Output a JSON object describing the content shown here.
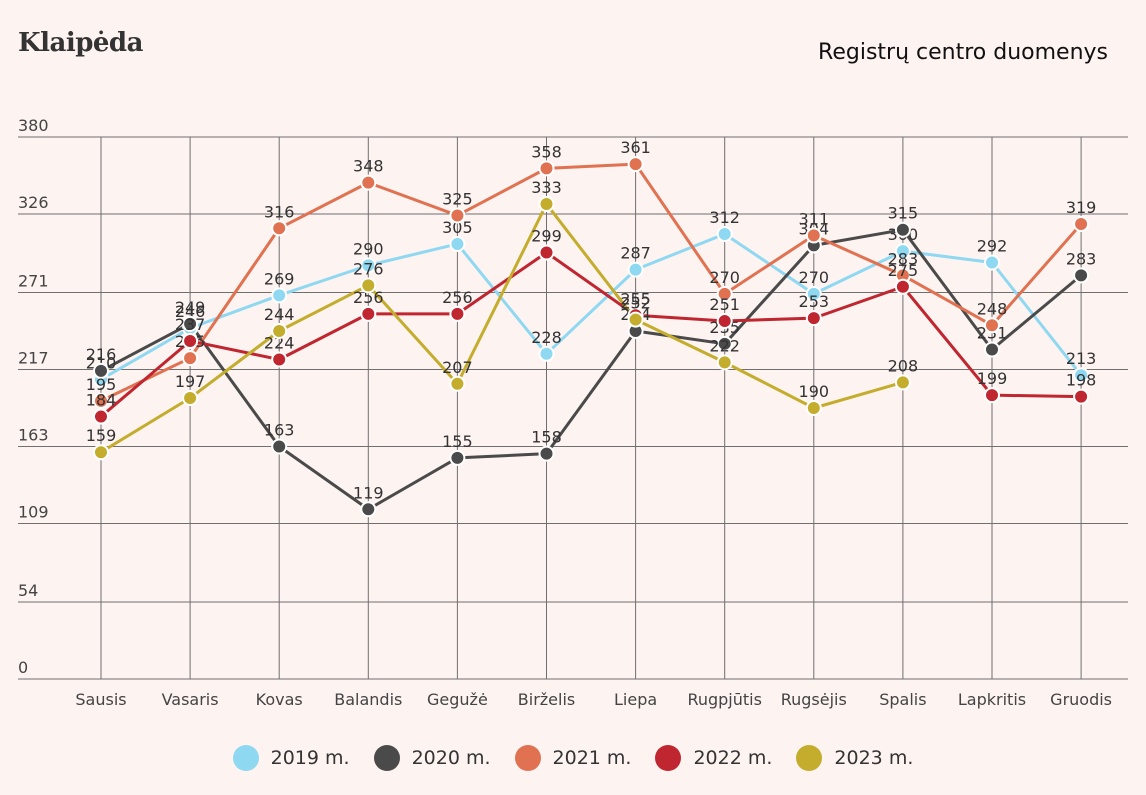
{
  "header": {
    "title": "Klaipėda",
    "source": "Registrų centro duomenys"
  },
  "chart_data": {
    "type": "line",
    "title": "Klaipėda",
    "categories": [
      "Sausis",
      "Vasaris",
      "Kovas",
      "Balandis",
      "Gegužė",
      "Birželis",
      "Liepa",
      "Rugpjūtis",
      "Rugsėjis",
      "Spalis",
      "Lapkritis",
      "Gruodis"
    ],
    "y_ticks": [
      "0",
      "54",
      "109",
      "163",
      "217",
      "271",
      "326",
      "380"
    ],
    "ylim": [
      0,
      380
    ],
    "grid": true,
    "legend_position": "bottom",
    "xlabel": "",
    "ylabel": "",
    "series": [
      {
        "name": "2019 m.",
        "color": "#8fd8f2",
        "values": [
          210,
          246,
          269,
          290,
          305,
          228,
          287,
          312,
          270,
          300,
          292,
          213
        ]
      },
      {
        "name": "2020 m.",
        "color": "#4a4a4a",
        "values": [
          216,
          249,
          163,
          119,
          155,
          158,
          244,
          235,
          304,
          315,
          231,
          283
        ]
      },
      {
        "name": "2021 m.",
        "color": "#e07252",
        "values": [
          195,
          225,
          316,
          348,
          325,
          358,
          361,
          270,
          311,
          283,
          248,
          319
        ]
      },
      {
        "name": "2022 m.",
        "color": "#bf2630",
        "values": [
          184,
          237,
          224,
          256,
          256,
          299,
          255,
          251,
          253,
          275,
          199,
          198
        ]
      },
      {
        "name": "2023 m.",
        "color": "#c4ad2d",
        "values": [
          159,
          197,
          244,
          276,
          207,
          333,
          252,
          222,
          190,
          208,
          null,
          null
        ]
      }
    ]
  }
}
